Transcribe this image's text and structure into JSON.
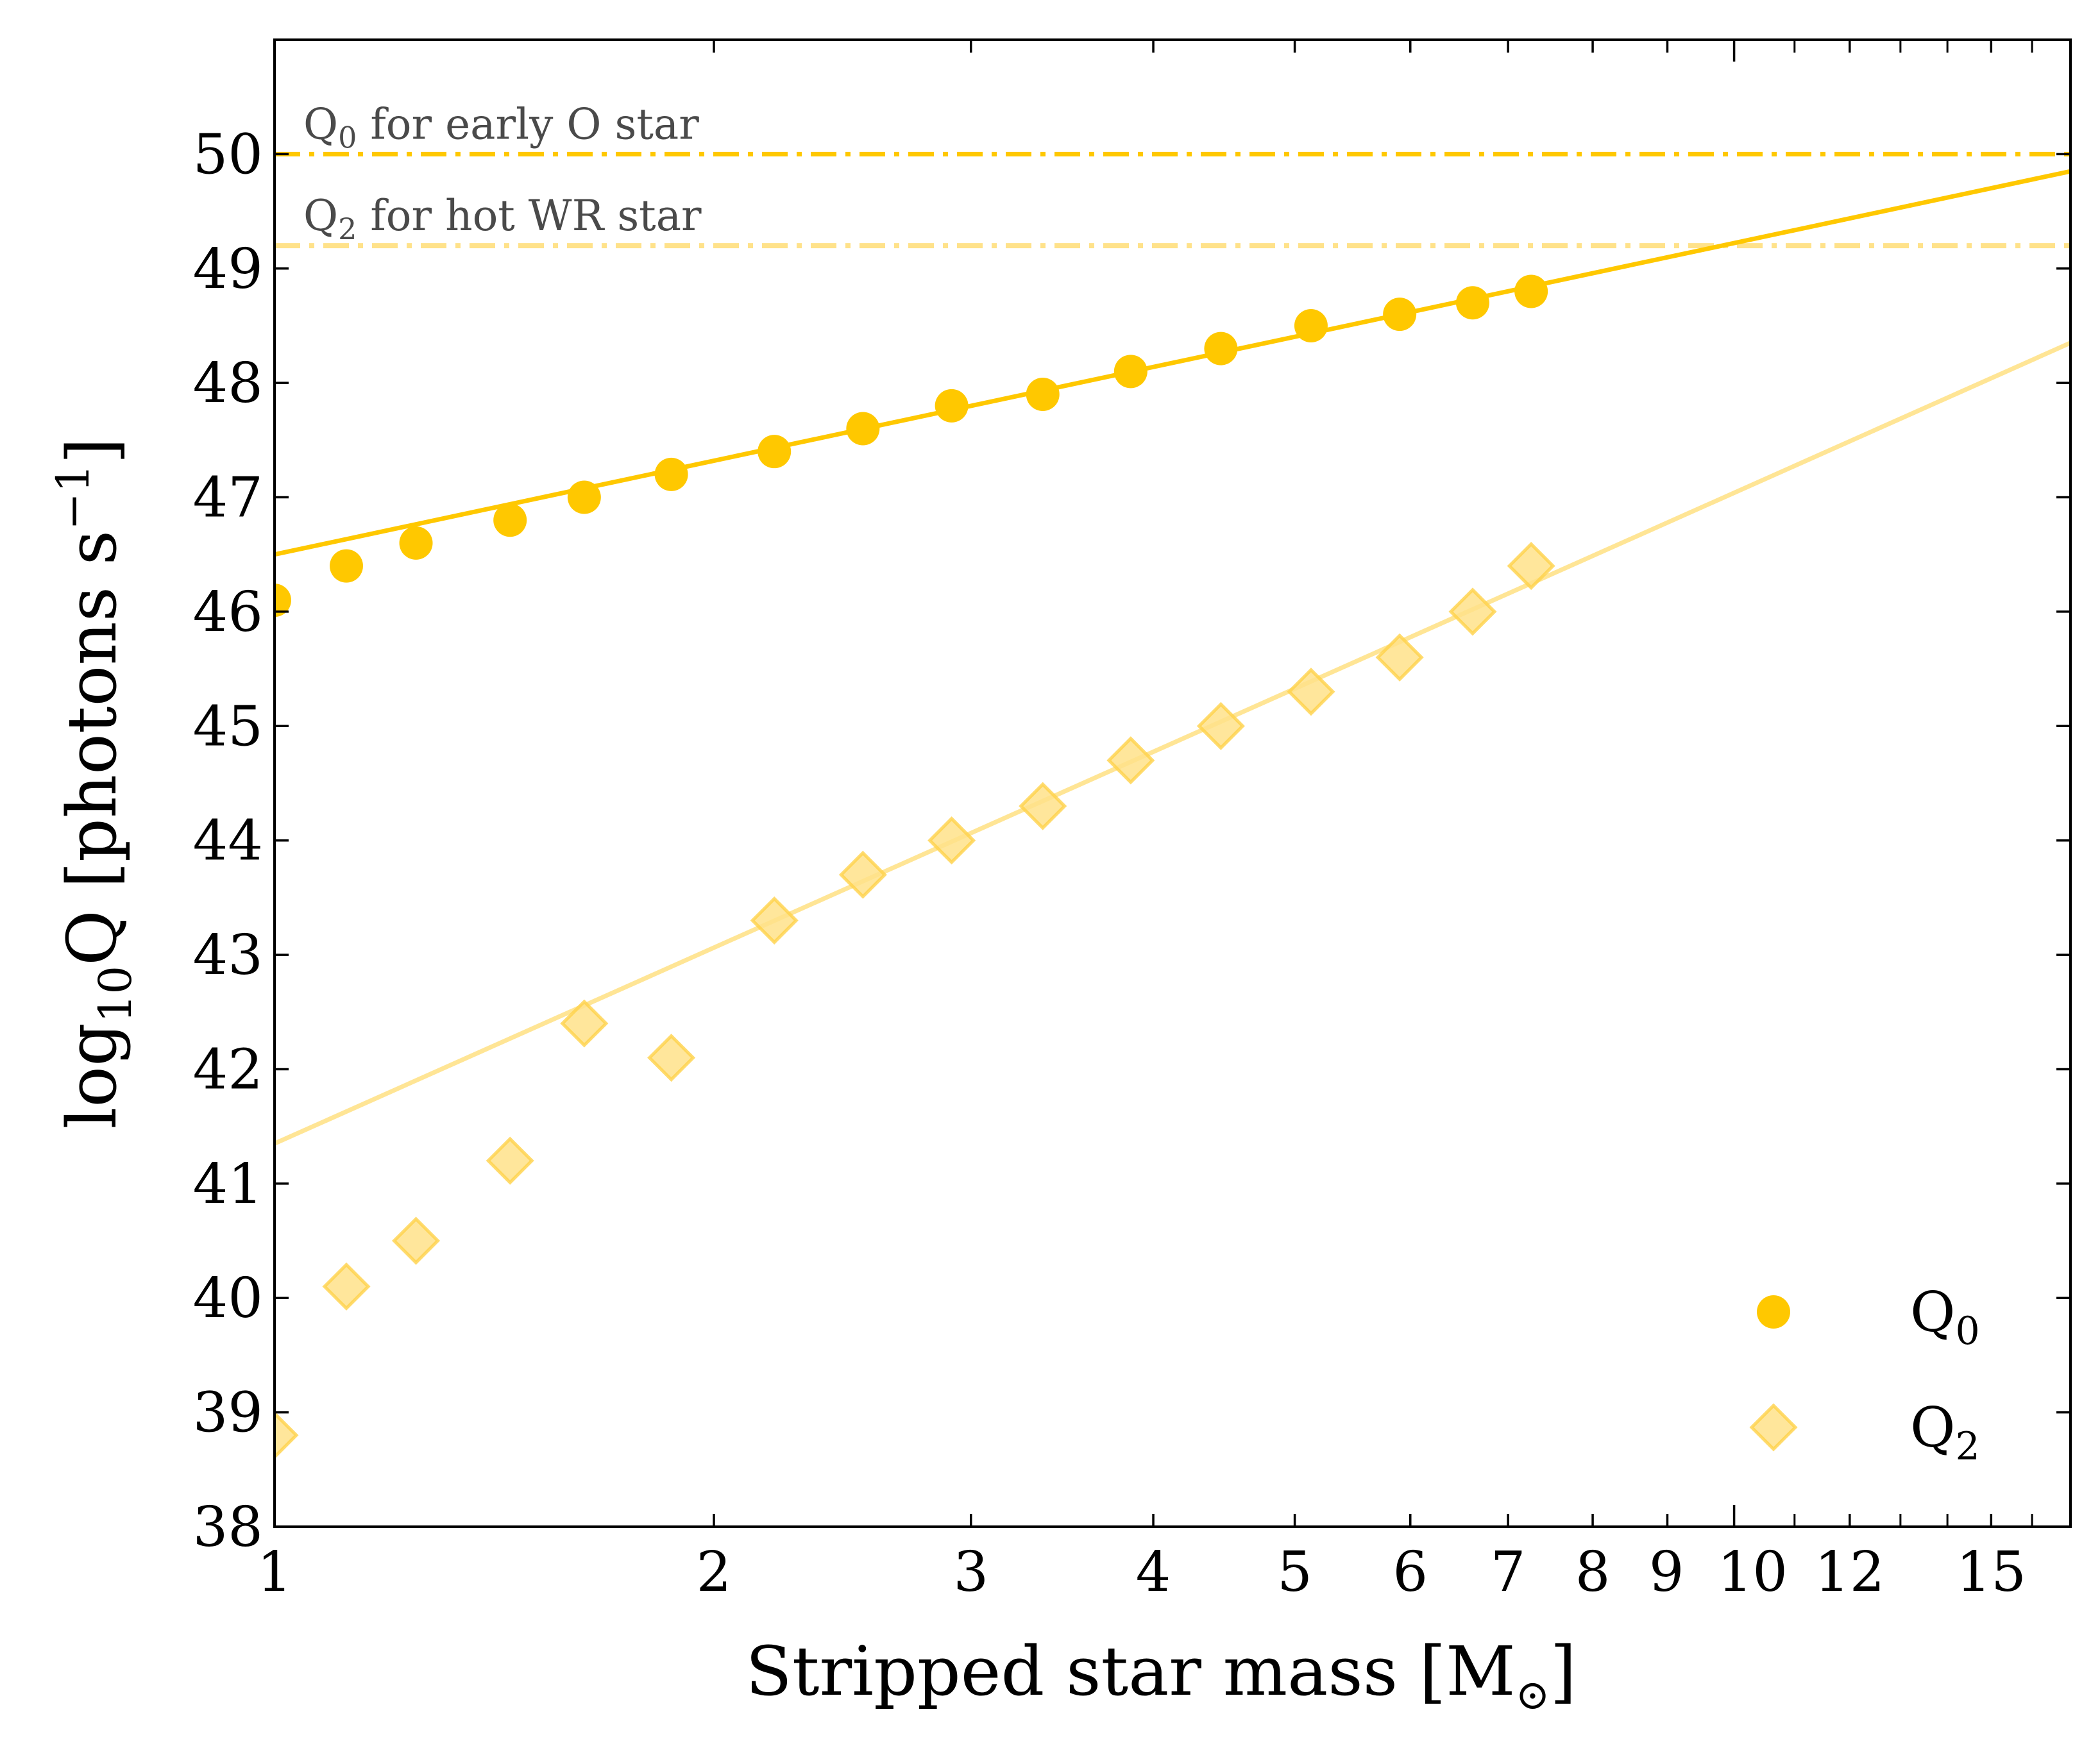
{
  "chart_data": {
    "type": "scatter",
    "xlabel": "Stripped star mass [M",
    "xlabel_suffix": "]",
    "ylabel_prefix": "log",
    "ylabel_sub": "10",
    "ylabel_main": "Q [photons s",
    "ylabel_sup": "−1",
    "ylabel_end": "]",
    "xscale": "log",
    "xlim": [
      1,
      17
    ],
    "ylim": [
      38,
      51
    ],
    "x_ticks": [
      {
        "value": 1,
        "label": "1"
      },
      {
        "value": 2,
        "label": "2"
      },
      {
        "value": 3,
        "label": "3"
      },
      {
        "value": 4,
        "label": "4"
      },
      {
        "value": 5,
        "label": "5"
      },
      {
        "value": 6,
        "label": "6"
      },
      {
        "value": 7,
        "label": "7"
      },
      {
        "value": 8,
        "label": "8"
      },
      {
        "value": 9,
        "label": "9"
      },
      {
        "value": 10,
        "label": "10"
      },
      {
        "value": 12,
        "label": "12"
      },
      {
        "value": 15,
        "label": "15"
      }
    ],
    "y_ticks": [
      38,
      39,
      40,
      41,
      42,
      43,
      44,
      45,
      46,
      47,
      48,
      49,
      50
    ],
    "legend_position": "bottom-right",
    "series": [
      {
        "name": "Q0",
        "label_main": "Q",
        "label_sub": "0",
        "marker": "circle",
        "color": "#FFC800",
        "opacity": 1.0,
        "points": [
          [
            1.0,
            46.1
          ],
          [
            1.12,
            46.4
          ],
          [
            1.25,
            46.6
          ],
          [
            1.45,
            46.8
          ],
          [
            1.63,
            47.0
          ],
          [
            1.87,
            47.2
          ],
          [
            2.2,
            47.4
          ],
          [
            2.53,
            47.6
          ],
          [
            2.91,
            47.8
          ],
          [
            3.36,
            47.9
          ],
          [
            3.86,
            48.1
          ],
          [
            4.45,
            48.3
          ],
          [
            5.13,
            48.5
          ],
          [
            5.9,
            48.6
          ],
          [
            6.62,
            48.7
          ],
          [
            7.26,
            48.8
          ]
        ],
        "fit": {
          "x": [
            1,
            17
          ],
          "y": [
            46.5,
            49.85
          ]
        }
      },
      {
        "name": "Q2",
        "label_main": "Q",
        "label_sub": "2",
        "marker": "diamond",
        "color": "#FFE28A",
        "opacity": 0.85,
        "points": [
          [
            1.0,
            38.8
          ],
          [
            1.12,
            40.1
          ],
          [
            1.25,
            40.5
          ],
          [
            1.45,
            41.2
          ],
          [
            1.63,
            42.4
          ],
          [
            1.87,
            42.1
          ],
          [
            2.2,
            43.3
          ],
          [
            2.53,
            43.7
          ],
          [
            2.91,
            44.0
          ],
          [
            3.36,
            44.3
          ],
          [
            3.86,
            44.7
          ],
          [
            4.45,
            45.0
          ],
          [
            5.13,
            45.3
          ],
          [
            5.9,
            45.6
          ],
          [
            6.62,
            46.0
          ],
          [
            7.26,
            46.4
          ]
        ],
        "fit": {
          "x": [
            1,
            17
          ],
          "y": [
            41.35,
            48.35
          ]
        }
      }
    ],
    "reference_lines": [
      {
        "y": 50.0,
        "color": "#FFC800",
        "label_main": "Q",
        "label_sub": "0",
        "label_rest": " for early O star"
      },
      {
        "y": 49.2,
        "color": "#FFE28A",
        "label_main": "Q",
        "label_sub": "2",
        "label_rest": " for hot WR star"
      }
    ]
  }
}
